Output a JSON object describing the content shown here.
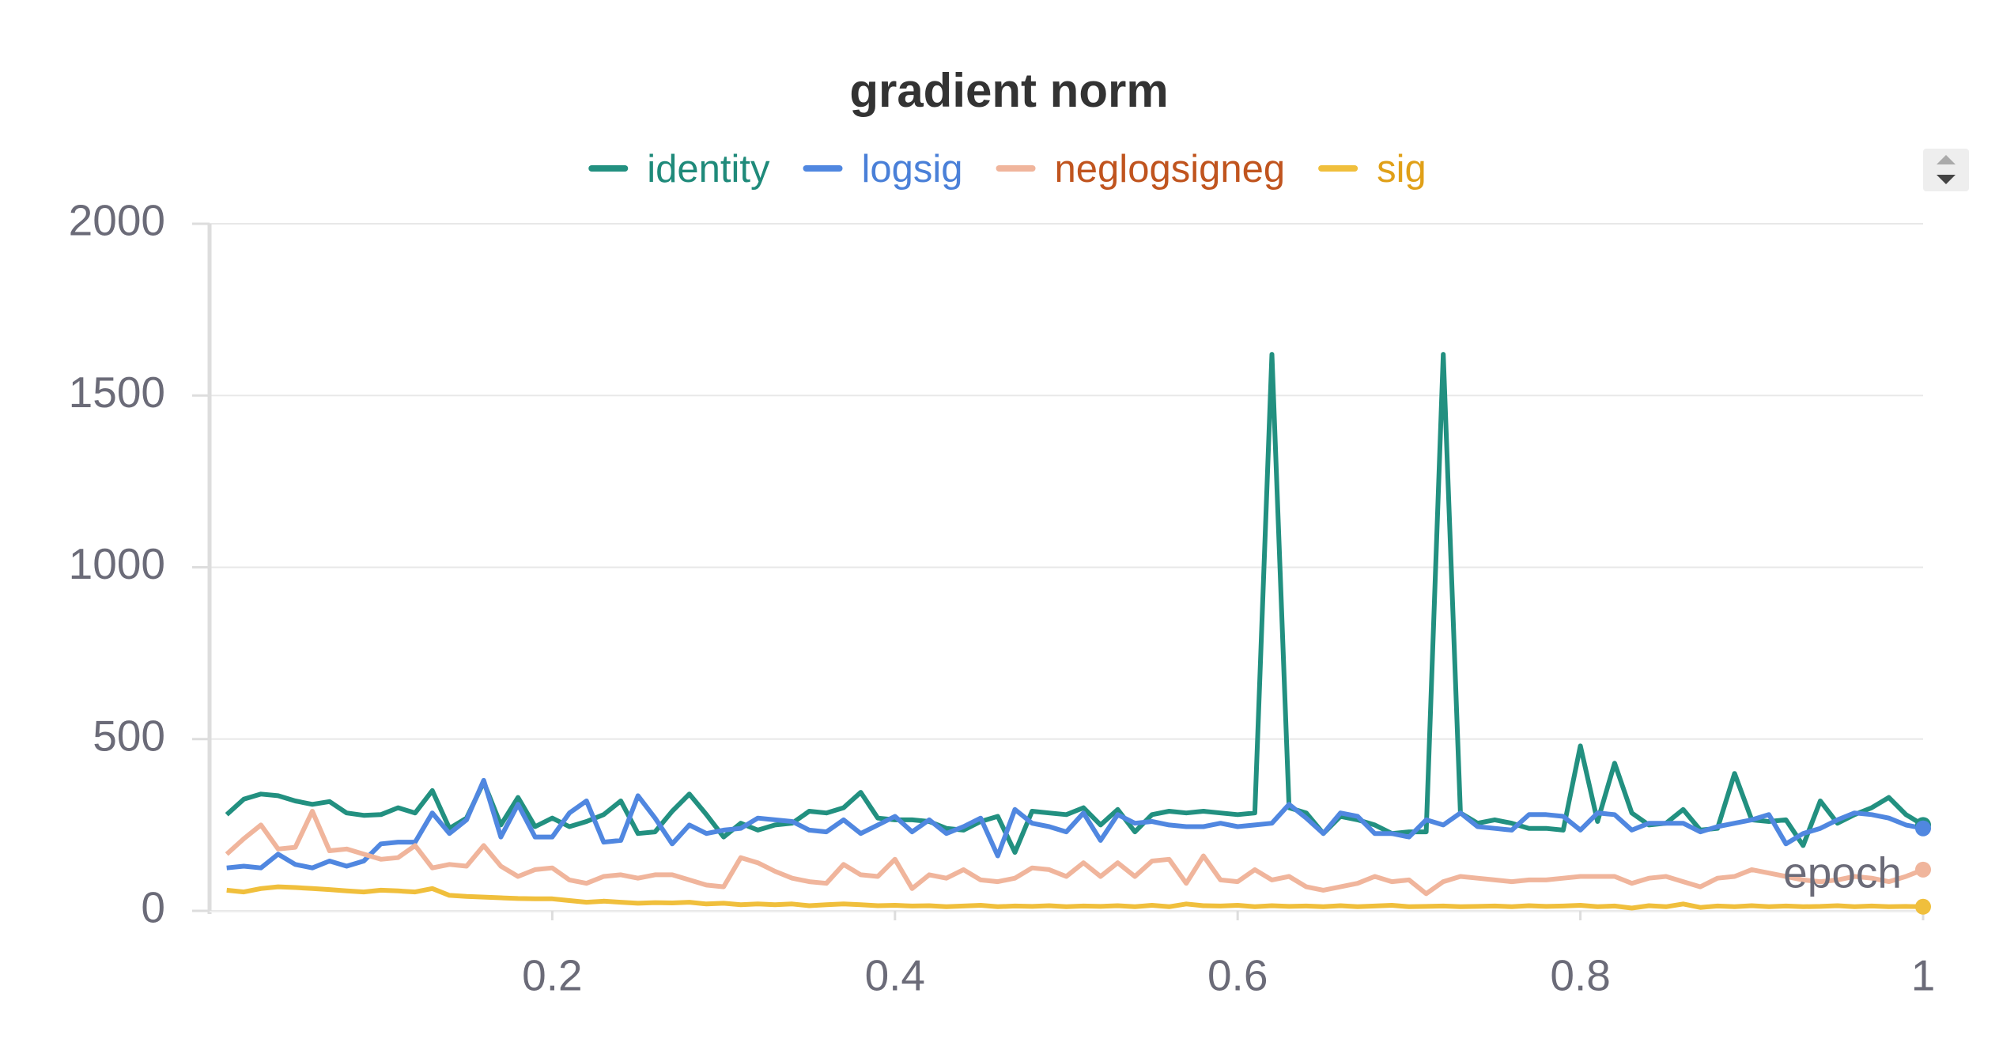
{
  "chart_data": {
    "type": "line",
    "title": "gradient norm",
    "x_label": "epoch",
    "x": [
      0.01,
      0.02,
      0.03,
      0.04,
      0.05,
      0.06,
      0.07,
      0.08,
      0.09,
      0.1,
      0.11,
      0.12,
      0.13,
      0.14,
      0.15,
      0.16,
      0.17,
      0.18,
      0.19,
      0.2,
      0.21,
      0.22,
      0.23,
      0.24,
      0.25,
      0.26,
      0.27,
      0.28,
      0.29,
      0.3,
      0.31,
      0.32,
      0.33,
      0.34,
      0.35,
      0.36,
      0.37,
      0.38,
      0.39,
      0.4,
      0.41,
      0.42,
      0.43,
      0.44,
      0.45,
      0.46,
      0.47,
      0.48,
      0.49,
      0.5,
      0.51,
      0.52,
      0.53,
      0.54,
      0.55,
      0.56,
      0.57,
      0.58,
      0.59,
      0.6,
      0.61,
      0.62,
      0.63,
      0.64,
      0.65,
      0.66,
      0.67,
      0.68,
      0.69,
      0.7,
      0.71,
      0.72,
      0.73,
      0.74,
      0.75,
      0.76,
      0.77,
      0.78,
      0.79,
      0.8,
      0.81,
      0.82,
      0.83,
      0.84,
      0.85,
      0.86,
      0.87,
      0.88,
      0.89,
      0.9,
      0.91,
      0.92,
      0.93,
      0.94,
      0.95,
      0.96,
      0.97,
      0.98,
      0.99,
      1
    ],
    "series": [
      {
        "name": "identity",
        "color": "#229080",
        "text_color": "#1f8a7a",
        "values": [
          280,
          325,
          340,
          335,
          320,
          310,
          318,
          285,
          278,
          280,
          300,
          285,
          350,
          240,
          270,
          375,
          250,
          330,
          245,
          270,
          245,
          260,
          280,
          320,
          225,
          230,
          290,
          340,
          280,
          215,
          255,
          235,
          250,
          255,
          290,
          285,
          300,
          345,
          270,
          265,
          265,
          260,
          240,
          235,
          260,
          275,
          170,
          290,
          285,
          280,
          300,
          250,
          295,
          230,
          280,
          290,
          285,
          290,
          285,
          280,
          285,
          1620,
          300,
          285,
          225,
          275,
          265,
          250,
          225,
          230,
          230,
          1620,
          285,
          255,
          265,
          255,
          240,
          240,
          235,
          480,
          260,
          430,
          285,
          250,
          255,
          295,
          235,
          240,
          400,
          265,
          260,
          265,
          190,
          320,
          255,
          280,
          300,
          330,
          280,
          250
        ]
      },
      {
        "name": "logsig",
        "color": "#5087e0",
        "text_color": "#4a80d8",
        "values": [
          125,
          130,
          125,
          165,
          135,
          125,
          145,
          130,
          145,
          195,
          200,
          200,
          285,
          225,
          265,
          380,
          215,
          310,
          215,
          215,
          285,
          320,
          200,
          205,
          335,
          270,
          195,
          250,
          225,
          235,
          240,
          270,
          265,
          260,
          235,
          230,
          265,
          225,
          250,
          275,
          230,
          265,
          225,
          245,
          270,
          160,
          295,
          255,
          245,
          230,
          285,
          205,
          280,
          255,
          260,
          250,
          245,
          245,
          255,
          245,
          250,
          255,
          310,
          270,
          225,
          285,
          275,
          225,
          225,
          215,
          265,
          250,
          285,
          245,
          240,
          235,
          280,
          280,
          275,
          235,
          285,
          280,
          235,
          255,
          255,
          255,
          230,
          245,
          255,
          265,
          280,
          195,
          225,
          240,
          265,
          285,
          280,
          270,
          250,
          240
        ]
      },
      {
        "name": "neglogsigneg",
        "color": "#f0b59c",
        "text_color": "#c0541e",
        "values": [
          165,
          210,
          250,
          180,
          185,
          290,
          175,
          180,
          165,
          150,
          155,
          190,
          125,
          135,
          130,
          190,
          130,
          100,
          120,
          125,
          90,
          80,
          100,
          105,
          95,
          105,
          105,
          90,
          75,
          70,
          155,
          140,
          115,
          95,
          85,
          80,
          135,
          105,
          100,
          150,
          65,
          105,
          95,
          120,
          90,
          85,
          95,
          125,
          120,
          100,
          140,
          100,
          140,
          100,
          145,
          150,
          80,
          160,
          90,
          85,
          120,
          90,
          100,
          70,
          60,
          70,
          80,
          100,
          85,
          90,
          50,
          85,
          100,
          95,
          90,
          85,
          90,
          90,
          95,
          100,
          100,
          100,
          80,
          95,
          100,
          85,
          70,
          95,
          100,
          120,
          110,
          100,
          90,
          85,
          90,
          100,
          95,
          85,
          100,
          120
        ]
      },
      {
        "name": "sig",
        "color": "#f0bf3c",
        "text_color": "#e0a018",
        "values": [
          60,
          55,
          65,
          70,
          68,
          65,
          62,
          58,
          55,
          60,
          58,
          55,
          65,
          45,
          42,
          40,
          38,
          36,
          35,
          35,
          30,
          25,
          28,
          25,
          22,
          24,
          23,
          25,
          20,
          22,
          18,
          20,
          18,
          20,
          15,
          18,
          20,
          18,
          15,
          16,
          14,
          15,
          12,
          14,
          16,
          12,
          14,
          13,
          15,
          12,
          14,
          13,
          15,
          12,
          16,
          12,
          20,
          15,
          14,
          16,
          12,
          15,
          13,
          14,
          12,
          15,
          12,
          14,
          16,
          12,
          13,
          14,
          12,
          13,
          14,
          12,
          15,
          13,
          14,
          16,
          12,
          14,
          8,
          15,
          12,
          20,
          10,
          14,
          12,
          15,
          12,
          14,
          12,
          13,
          15,
          12,
          14,
          12,
          13,
          12
        ]
      }
    ],
    "xlim": [
      0,
      1
    ],
    "xticks": [
      0.2,
      0.4,
      0.6,
      0.8,
      1
    ],
    "ylim": [
      0,
      2000
    ],
    "yticks": [
      0,
      500,
      1000,
      1500,
      2000
    ],
    "grid": true,
    "legend": "top"
  }
}
